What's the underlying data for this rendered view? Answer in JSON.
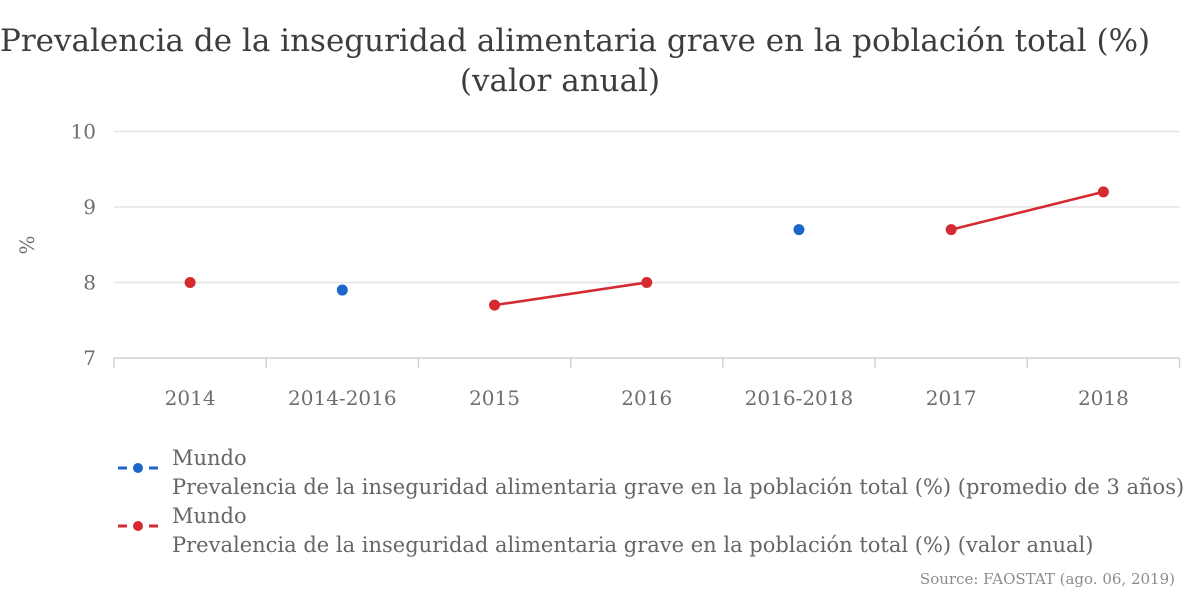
{
  "title": {
    "line1": "Prevalencia de la inseguridad alimentaria grave en la población total (%)",
    "line2": "(valor anual)"
  },
  "source": "Source: FAOSTAT (ago. 06, 2019)",
  "chart_data": {
    "type": "line",
    "categories": [
      "2014",
      "2014-2016",
      "2015",
      "2016",
      "2016-2018",
      "2017",
      "2018"
    ],
    "series": [
      {
        "name": "Mundo",
        "description": "Prevalencia de la inseguridad alimentaria grave en la población total (%) (promedio de 3 años)",
        "color": "#1b66c9",
        "values": [
          null,
          7.9,
          null,
          null,
          8.7,
          null,
          null
        ]
      },
      {
        "name": "Mundo",
        "description": "Prevalencia de la inseguridad alimentaria grave en la población total (%) (valor anual)",
        "color": "#d42a30",
        "values": [
          8.0,
          null,
          7.7,
          8.0,
          null,
          8.7,
          9.2
        ]
      }
    ],
    "title": "Prevalencia de la inseguridad alimentaria grave en la población total (%) (valor anual)",
    "xlabel": "",
    "ylabel": "%",
    "ylim": [
      7,
      10
    ],
    "yticks": [
      7,
      8,
      9,
      10
    ],
    "grid": true,
    "legend_position": "bottom-left",
    "colors": {
      "gridline": "#e4e4e4",
      "axis": "#d0d0d0",
      "tick_label": "#6e6e6e"
    }
  }
}
